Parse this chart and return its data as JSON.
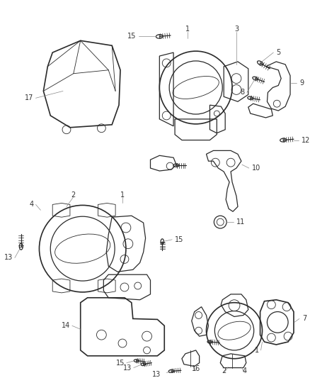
{
  "bg_color": "#ffffff",
  "line_color": "#2a2a2a",
  "label_color": "#333333",
  "callout_color": "#888888",
  "figsize": [
    4.39,
    5.33
  ],
  "dpi": 100,
  "lw_heavy": 1.2,
  "lw_medium": 0.9,
  "lw_light": 0.6,
  "lw_callout": 0.5,
  "label_fontsize": 7.0
}
